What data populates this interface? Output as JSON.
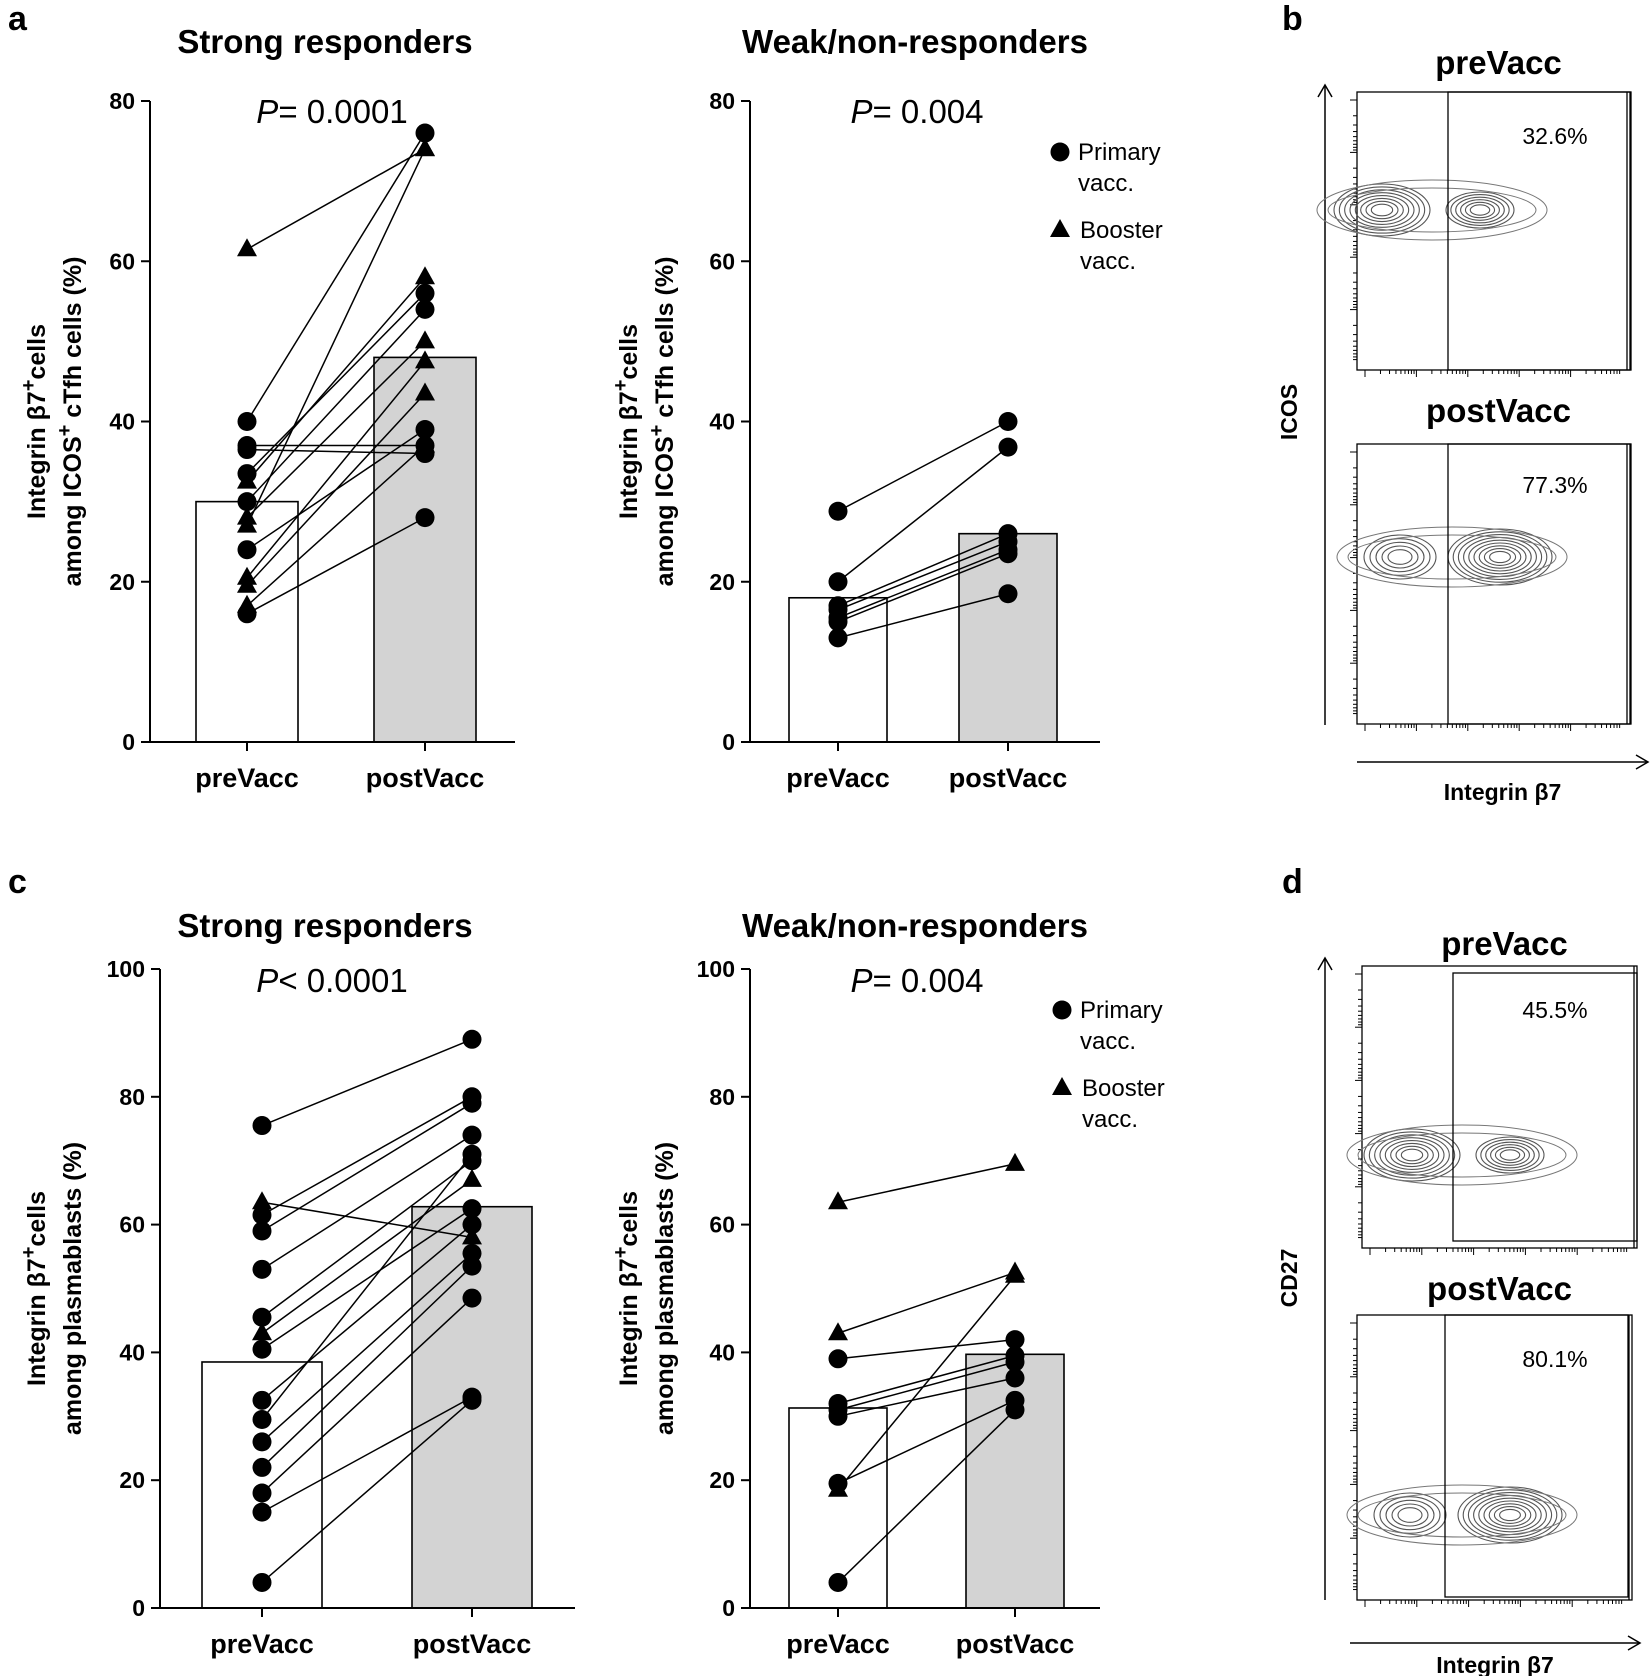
{
  "chart_data": [
    {
      "id": "a1",
      "panel_letter": "a",
      "type": "bar",
      "title": "Strong responders",
      "ylabel_line1_pre": "Integrin β7",
      "ylabel_line1_sup": "+",
      "ylabel_line1_post": "cells",
      "ylabel_line2_pre": "among ICOS",
      "ylabel_line2_sup": "+",
      "ylabel_line2_post": " cTfh cells (%)",
      "ylim": [
        0,
        80
      ],
      "yticks": [
        0,
        20,
        40,
        60,
        80
      ],
      "categories": [
        "preVacc",
        "postVacc"
      ],
      "means": [
        30,
        48
      ],
      "p_italic": "P",
      "p_rest": "= 0.0001",
      "pairs": [
        {
          "pre": 61.5,
          "post": 74.0,
          "shape": "triangle"
        },
        {
          "pre": 40.0,
          "post": 76.0,
          "shape": "circle"
        },
        {
          "pre": 37.0,
          "post": 37.0,
          "shape": "circle"
        },
        {
          "pre": 33.5,
          "post": 56.0,
          "shape": "circle"
        },
        {
          "pre": 32.5,
          "post": 58.0,
          "shape": "triangle"
        },
        {
          "pre": 30.0,
          "post": 54.0,
          "shape": "circle"
        },
        {
          "pre": 28.0,
          "post": 50.0,
          "shape": "triangle"
        },
        {
          "pre": 27.0,
          "post": 74.0,
          "shape": "triangle"
        },
        {
          "pre": 24.0,
          "post": 39.0,
          "shape": "circle"
        },
        {
          "pre": 20.5,
          "post": 47.5,
          "shape": "triangle"
        },
        {
          "pre": 19.5,
          "post": 43.5,
          "shape": "triangle"
        },
        {
          "pre": 17.0,
          "post": 37.0,
          "shape": "triangle"
        },
        {
          "pre": 16.0,
          "post": 28.0,
          "shape": "circle"
        },
        {
          "pre": 36.5,
          "post": 36.0,
          "shape": "circle"
        }
      ]
    },
    {
      "id": "a2",
      "panel_letter": "",
      "type": "bar",
      "title": "Weak/non-responders",
      "ylabel_line1_pre": "Integrin β7",
      "ylabel_line1_sup": "+",
      "ylabel_line1_post": "cells",
      "ylabel_line2_pre": "among ICOS",
      "ylabel_line2_sup": "+",
      "ylabel_line2_post": " cTfh cells (%)",
      "ylim": [
        0,
        80
      ],
      "yticks": [
        0,
        20,
        40,
        60,
        80
      ],
      "categories": [
        "preVacc",
        "postVacc"
      ],
      "means": [
        18,
        26
      ],
      "p_italic": "P",
      "p_rest": "= 0.004",
      "legend": {
        "primary_line1": "Primary",
        "primary_line2": "vacc.",
        "booster_line1": "Booster",
        "booster_line2": "vacc."
      },
      "pairs": [
        {
          "pre": 28.8,
          "post": 40.0,
          "shape": "circle"
        },
        {
          "pre": 20.0,
          "post": 36.8,
          "shape": "circle"
        },
        {
          "pre": 17.0,
          "post": 26.0,
          "shape": "circle"
        },
        {
          "pre": 16.5,
          "post": 25.0,
          "shape": "circle"
        },
        {
          "pre": 15.5,
          "post": 24.0,
          "shape": "circle"
        },
        {
          "pre": 15.0,
          "post": 23.5,
          "shape": "circle"
        },
        {
          "pre": 13.0,
          "post": 18.5,
          "shape": "circle"
        }
      ]
    },
    {
      "id": "c1",
      "panel_letter": "c",
      "type": "bar",
      "title": "Strong responders",
      "ylabel_line1_pre": "Integrin β7",
      "ylabel_line1_sup": "+",
      "ylabel_line1_post": "cells",
      "ylabel_line2_pre": "among plasmablasts (%)",
      "ylabel_line2_sup": "",
      "ylabel_line2_post": "",
      "ylim": [
        0,
        100
      ],
      "yticks": [
        0,
        20,
        40,
        60,
        80,
        100
      ],
      "categories": [
        "preVacc",
        "postVacc"
      ],
      "means": [
        38.5,
        62.8
      ],
      "p_italic": "P",
      "p_rest": "< 0.0001",
      "pairs": [
        {
          "pre": 75.5,
          "post": 89.0,
          "shape": "circle"
        },
        {
          "pre": 63.5,
          "post": 58.0,
          "shape": "triangle"
        },
        {
          "pre": 61.5,
          "post": 80.0,
          "shape": "circle"
        },
        {
          "pre": 59.0,
          "post": 79.0,
          "shape": "circle"
        },
        {
          "pre": 53.0,
          "post": 74.0,
          "shape": "circle"
        },
        {
          "pre": 45.5,
          "post": 70.0,
          "shape": "circle"
        },
        {
          "pre": 43.0,
          "post": 67.0,
          "shape": "triangle"
        },
        {
          "pre": 40.5,
          "post": 62.5,
          "shape": "circle"
        },
        {
          "pre": 32.5,
          "post": 60.0,
          "shape": "circle"
        },
        {
          "pre": 29.5,
          "post": 71.0,
          "shape": "circle"
        },
        {
          "pre": 26.0,
          "post": 55.5,
          "shape": "circle"
        },
        {
          "pre": 22.0,
          "post": 53.5,
          "shape": "circle"
        },
        {
          "pre": 18.0,
          "post": 48.5,
          "shape": "circle"
        },
        {
          "pre": 15.0,
          "post": 33.0,
          "shape": "circle"
        },
        {
          "pre": 4.0,
          "post": 32.5,
          "shape": "circle"
        }
      ]
    },
    {
      "id": "c2",
      "panel_letter": "",
      "type": "bar",
      "title": "Weak/non-responders",
      "ylabel_line1_pre": "Integrin β7",
      "ylabel_line1_sup": "+",
      "ylabel_line1_post": "cells",
      "ylabel_line2_pre": "among plasmablasts (%)",
      "ylabel_line2_sup": "",
      "ylabel_line2_post": "",
      "ylim": [
        0,
        100
      ],
      "yticks": [
        0,
        20,
        40,
        60,
        80,
        100
      ],
      "categories": [
        "preVacc",
        "postVacc"
      ],
      "means": [
        31.3,
        39.7
      ],
      "p_italic": "P",
      "p_rest": "= 0.004",
      "legend": {
        "primary_line1": "Primary",
        "primary_line2": "vacc.",
        "booster_line1": "Booster",
        "booster_line2": "vacc."
      },
      "pairs": [
        {
          "pre": 63.5,
          "post": 69.5,
          "shape": "triangle"
        },
        {
          "pre": 43.0,
          "post": 52.5,
          "shape": "triangle"
        },
        {
          "pre": 39.0,
          "post": 42.0,
          "shape": "circle"
        },
        {
          "pre": 32.0,
          "post": 39.5,
          "shape": "circle"
        },
        {
          "pre": 31.0,
          "post": 38.5,
          "shape": "circle"
        },
        {
          "pre": 30.0,
          "post": 36.0,
          "shape": "circle"
        },
        {
          "pre": 19.5,
          "post": 32.5,
          "shape": "circle"
        },
        {
          "pre": 18.5,
          "post": 52.0,
          "shape": "triangle"
        },
        {
          "pre": 4.0,
          "post": 31.0,
          "shape": "circle"
        }
      ]
    }
  ],
  "flow_panels": [
    {
      "letter": "b",
      "y_axis": "ICOS",
      "x_axis": "Integrin β7",
      "plots": [
        {
          "title": "preVacc",
          "percent": "32.6%"
        },
        {
          "title": "postVacc",
          "percent": "77.3%"
        }
      ]
    },
    {
      "letter": "d",
      "y_axis": "CD27",
      "x_axis": "Integrin β7",
      "plots": [
        {
          "title": "preVacc",
          "percent": "45.5%"
        },
        {
          "title": "postVacc",
          "percent": "80.1%"
        }
      ]
    }
  ]
}
